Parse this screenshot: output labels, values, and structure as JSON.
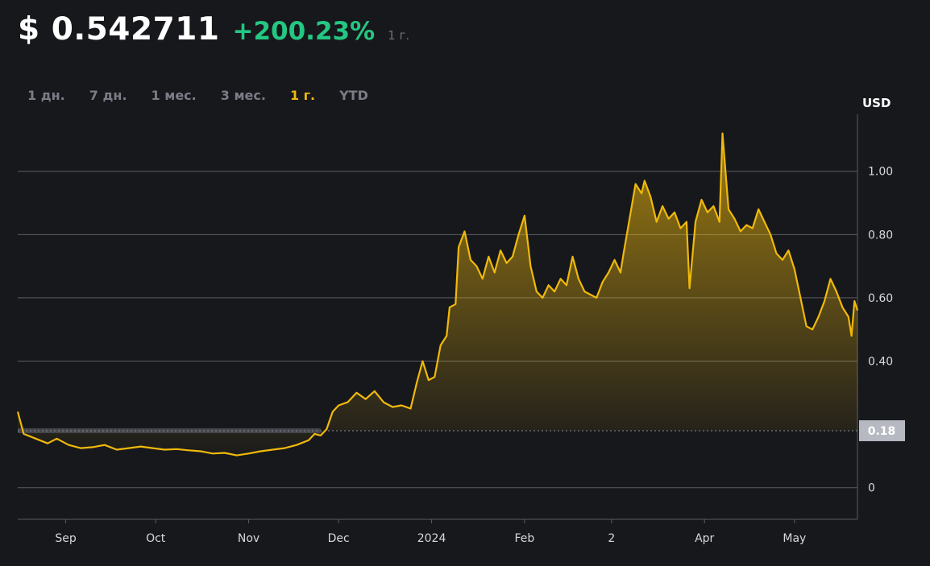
{
  "header": {
    "price": "$ 0.542711",
    "change": "+200.23%",
    "period": "1 г."
  },
  "tabs": [
    {
      "label": "1 дн.",
      "active": false
    },
    {
      "label": "7 дн.",
      "active": false
    },
    {
      "label": "1 мес.",
      "active": false
    },
    {
      "label": "3 мес.",
      "active": false
    },
    {
      "label": "1 г.",
      "active": true
    },
    {
      "label": "YTD",
      "active": false
    }
  ],
  "colors": {
    "background": "#17181c",
    "line": "#f0b90b",
    "change_positive": "#24c782",
    "grid": "#5a5c63",
    "baseline_badge": "#b7b9c2"
  },
  "chart_data": {
    "type": "area",
    "ylabel": "USD",
    "y_ticks": [
      0,
      0.4,
      0.6,
      0.8,
      1.0
    ],
    "y_tick_labels": [
      "0",
      "0.40",
      "0.60",
      "0.80",
      "1.00"
    ],
    "ylim": [
      -0.1,
      1.18
    ],
    "baseline_value": 0.18,
    "baseline_label": "0.18",
    "x_axis_labels": [
      "Sep",
      "Oct",
      "Nov",
      "Dec",
      "2024",
      "Feb",
      "2",
      "Apr",
      "May"
    ],
    "x_range": [
      "2023-08-16",
      "2024-05-22"
    ],
    "series": [
      {
        "values": [
          [
            "2023-08-16",
            0.24
          ],
          [
            "2023-08-18",
            0.17
          ],
          [
            "2023-08-22",
            0.155
          ],
          [
            "2023-08-26",
            0.14
          ],
          [
            "2023-08-29",
            0.155
          ],
          [
            "2023-09-02",
            0.135
          ],
          [
            "2023-09-06",
            0.125
          ],
          [
            "2023-09-10",
            0.128
          ],
          [
            "2023-09-14",
            0.135
          ],
          [
            "2023-09-18",
            0.12
          ],
          [
            "2023-09-22",
            0.125
          ],
          [
            "2023-09-26",
            0.13
          ],
          [
            "2023-09-30",
            0.125
          ],
          [
            "2023-10-04",
            0.12
          ],
          [
            "2023-10-08",
            0.122
          ],
          [
            "2023-10-12",
            0.118
          ],
          [
            "2023-10-16",
            0.115
          ],
          [
            "2023-10-20",
            0.108
          ],
          [
            "2023-10-24",
            0.11
          ],
          [
            "2023-10-28",
            0.102
          ],
          [
            "2023-11-01",
            0.108
          ],
          [
            "2023-11-05",
            0.115
          ],
          [
            "2023-11-09",
            0.12
          ],
          [
            "2023-11-13",
            0.125
          ],
          [
            "2023-11-17",
            0.135
          ],
          [
            "2023-11-21",
            0.15
          ],
          [
            "2023-11-23",
            0.17
          ],
          [
            "2023-11-25",
            0.165
          ],
          [
            "2023-11-27",
            0.185
          ],
          [
            "2023-11-29",
            0.24
          ],
          [
            "2023-12-01",
            0.26
          ],
          [
            "2023-12-04",
            0.27
          ],
          [
            "2023-12-07",
            0.3
          ],
          [
            "2023-12-10",
            0.28
          ],
          [
            "2023-12-13",
            0.305
          ],
          [
            "2023-12-16",
            0.27
          ],
          [
            "2023-12-19",
            0.255
          ],
          [
            "2023-12-22",
            0.26
          ],
          [
            "2023-12-25",
            0.25
          ],
          [
            "2023-12-27",
            0.33
          ],
          [
            "2023-12-29",
            0.4
          ],
          [
            "2023-12-31",
            0.34
          ],
          [
            "2024-01-02",
            0.35
          ],
          [
            "2024-01-04",
            0.45
          ],
          [
            "2024-01-06",
            0.48
          ],
          [
            "2024-01-07",
            0.57
          ],
          [
            "2024-01-09",
            0.58
          ],
          [
            "2024-01-10",
            0.76
          ],
          [
            "2024-01-12",
            0.81
          ],
          [
            "2024-01-14",
            0.72
          ],
          [
            "2024-01-16",
            0.7
          ],
          [
            "2024-01-18",
            0.66
          ],
          [
            "2024-01-20",
            0.73
          ],
          [
            "2024-01-22",
            0.68
          ],
          [
            "2024-01-24",
            0.75
          ],
          [
            "2024-01-26",
            0.71
          ],
          [
            "2024-01-28",
            0.73
          ],
          [
            "2024-01-30",
            0.8
          ],
          [
            "2024-02-01",
            0.86
          ],
          [
            "2024-02-03",
            0.7
          ],
          [
            "2024-02-05",
            0.62
          ],
          [
            "2024-02-07",
            0.6
          ],
          [
            "2024-02-09",
            0.64
          ],
          [
            "2024-02-11",
            0.62
          ],
          [
            "2024-02-13",
            0.66
          ],
          [
            "2024-02-15",
            0.64
          ],
          [
            "2024-02-17",
            0.73
          ],
          [
            "2024-02-19",
            0.66
          ],
          [
            "2024-02-21",
            0.62
          ],
          [
            "2024-02-23",
            0.61
          ],
          [
            "2024-02-25",
            0.6
          ],
          [
            "2024-02-27",
            0.65
          ],
          [
            "2024-02-29",
            0.68
          ],
          [
            "2024-03-02",
            0.72
          ],
          [
            "2024-03-04",
            0.68
          ],
          [
            "2024-03-05",
            0.74
          ],
          [
            "2024-03-07",
            0.85
          ],
          [
            "2024-03-09",
            0.96
          ],
          [
            "2024-03-11",
            0.93
          ],
          [
            "2024-03-12",
            0.97
          ],
          [
            "2024-03-14",
            0.92
          ],
          [
            "2024-03-16",
            0.84
          ],
          [
            "2024-03-18",
            0.89
          ],
          [
            "2024-03-20",
            0.85
          ],
          [
            "2024-03-22",
            0.87
          ],
          [
            "2024-03-24",
            0.82
          ],
          [
            "2024-03-26",
            0.84
          ],
          [
            "2024-03-27",
            0.63
          ],
          [
            "2024-03-29",
            0.84
          ],
          [
            "2024-03-31",
            0.91
          ],
          [
            "2024-04-02",
            0.87
          ],
          [
            "2024-04-04",
            0.89
          ],
          [
            "2024-04-06",
            0.84
          ],
          [
            "2024-04-07",
            1.12
          ],
          [
            "2024-04-09",
            0.88
          ],
          [
            "2024-04-11",
            0.85
          ],
          [
            "2024-04-13",
            0.81
          ],
          [
            "2024-04-15",
            0.83
          ],
          [
            "2024-04-17",
            0.82
          ],
          [
            "2024-04-19",
            0.88
          ],
          [
            "2024-04-21",
            0.84
          ],
          [
            "2024-04-23",
            0.8
          ],
          [
            "2024-04-25",
            0.74
          ],
          [
            "2024-04-27",
            0.72
          ],
          [
            "2024-04-29",
            0.75
          ],
          [
            "2024-05-01",
            0.69
          ],
          [
            "2024-05-03",
            0.6
          ],
          [
            "2024-05-05",
            0.51
          ],
          [
            "2024-05-07",
            0.5
          ],
          [
            "2024-05-09",
            0.54
          ],
          [
            "2024-05-11",
            0.59
          ],
          [
            "2024-05-13",
            0.66
          ],
          [
            "2024-05-15",
            0.62
          ],
          [
            "2024-05-17",
            0.57
          ],
          [
            "2024-05-19",
            0.54
          ],
          [
            "2024-05-20",
            0.48
          ],
          [
            "2024-05-21",
            0.59
          ],
          [
            "2024-05-22",
            0.56
          ]
        ]
      }
    ]
  }
}
